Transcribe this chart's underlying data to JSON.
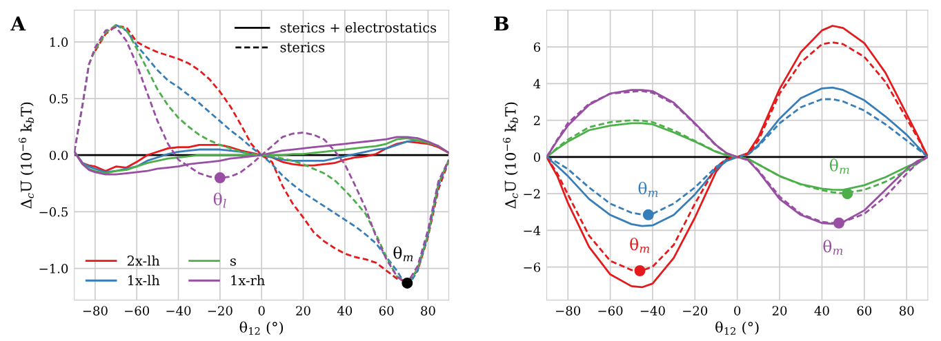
{
  "chart_data": [
    {
      "type": "line",
      "title": "A",
      "xlabel": "θ$_{12}$ (°)",
      "ylabel": "Δ$_{c}$U̅ (10$^{−6}$ k$_{b}$T)",
      "x": [
        -90,
        -86,
        -83,
        -80,
        -75,
        -70,
        -65,
        -60,
        -55,
        -50,
        -45,
        -40,
        -35,
        -30,
        -25,
        -20,
        -15,
        -10,
        -5,
        0,
        5,
        10,
        15,
        20,
        25,
        30,
        35,
        40,
        45,
        50,
        55,
        60,
        65,
        70,
        75,
        80,
        85,
        90
      ],
      "xlim": [
        -90,
        90
      ],
      "xticks": [
        {
          "value": -80,
          "label": "−80"
        },
        {
          "value": -60,
          "label": "−60"
        },
        {
          "value": -40,
          "label": "−40"
        },
        {
          "value": -20,
          "label": "−20"
        },
        0,
        20,
        40,
        60,
        80
      ],
      "ylim": [
        -1.28,
        1.28
      ],
      "yticks": [
        {
          "value": -1.0,
          "label": "−1.0"
        },
        {
          "value": -0.5,
          "label": "−0.5"
        },
        {
          "value": 0.0,
          "label": "0.0"
        },
        0.5,
        {
          "value": 1.0,
          "label": "1.0"
        }
      ],
      "grid": true,
      "legend": "bottom left",
      "ref_lines": [
        {
          "axis": "y",
          "value": 0,
          "color": "#000000"
        }
      ],
      "series": [
        {
          "name": "2x-lh",
          "color": "#e41a1c",
          "line_style": "solid",
          "values": [
            0.03,
            -0.07,
            -0.09,
            -0.1,
            -0.14,
            -0.1,
            -0.11,
            -0.06,
            0,
            0.03,
            0.06,
            0.07,
            0.07,
            0.09,
            0.09,
            0.09,
            0.07,
            0.04,
            0.02,
            0,
            -0.02,
            -0.06,
            -0.08,
            -0.09,
            -0.09,
            -0.08,
            -0.07,
            -0.04,
            -0.02,
            -0.01,
            0.01,
            0.06,
            0.1,
            0.12,
            0.11,
            0.1,
            0.07,
            0.02
          ]
        },
        {
          "name": "1x-lh",
          "color": "#377eb8",
          "line_style": "solid",
          "values": [
            0.03,
            -0.07,
            -0.1,
            -0.12,
            -0.15,
            -0.14,
            -0.12,
            -0.1,
            -0.05,
            -0.02,
            0.01,
            0.03,
            0.04,
            0.05,
            0.05,
            0.05,
            0.04,
            0.03,
            0.01,
            0,
            -0.02,
            -0.04,
            -0.05,
            -0.05,
            -0.05,
            -0.05,
            -0.03,
            -0.01,
            0.01,
            0.03,
            0.05,
            0.06,
            0.09,
            0.12,
            0.13,
            0.11,
            null,
            null
          ]
        },
        {
          "name": "s",
          "color": "#4daf4a",
          "line_style": "solid",
          "values": [
            0.03,
            -0.08,
            -0.12,
            -0.14,
            -0.16,
            -0.14,
            -0.13,
            -0.1,
            -0.07,
            -0.05,
            -0.03,
            -0.02,
            -0.01,
            0,
            0,
            0,
            0,
            0,
            0,
            0,
            0,
            0,
            0.01,
            0.01,
            0.02,
            0.03,
            0.04,
            0.05,
            0.06,
            0.07,
            0.08,
            0.1,
            0.14,
            0.15,
            0.13,
            0.11,
            0.08,
            0.02
          ]
        },
        {
          "name": "1x-rh",
          "color": "#984ea3",
          "line_style": "solid",
          "values": [
            0.03,
            -0.08,
            -0.13,
            -0.15,
            -0.17,
            -0.17,
            -0.16,
            -0.15,
            -0.14,
            -0.12,
            -0.11,
            -0.1,
            -0.08,
            -0.07,
            -0.06,
            -0.05,
            -0.03,
            -0.02,
            -0.01,
            0,
            0.02,
            0.04,
            0.05,
            0.06,
            0.07,
            0.08,
            0.09,
            0.1,
            0.11,
            0.12,
            0.13,
            0.14,
            0.16,
            0.16,
            0.15,
            0.12,
            0.08,
            0.02
          ]
        },
        {
          "color": "#e41a1c",
          "line_style": "dashed",
          "values": [
            null,
            null,
            null,
            0.92,
            1.07,
            1.14,
            1.13,
            1.0,
            0.95,
            0.91,
            0.88,
            0.85,
            0.81,
            0.75,
            0.67,
            0.56,
            0.43,
            0.27,
            0.1,
            0,
            -0.06,
            -0.27,
            -0.43,
            -0.55,
            -0.68,
            -0.76,
            -0.82,
            -0.87,
            -0.9,
            -0.92,
            -0.95,
            -1.02,
            -1.09,
            -1.12,
            -1.02,
            -0.72,
            -0.3,
            -0.05
          ]
        },
        {
          "color": "#377eb8",
          "line_style": "dashed",
          "values": [
            null,
            null,
            null,
            null,
            null,
            1.15,
            1.1,
            0.97,
            0.86,
            0.75,
            0.66,
            0.6,
            0.53,
            0.46,
            0.38,
            0.3,
            0.22,
            0.15,
            0.07,
            0,
            -0.08,
            -0.18,
            -0.26,
            -0.33,
            -0.39,
            -0.45,
            -0.51,
            -0.57,
            -0.63,
            -0.7,
            -0.78,
            -0.9,
            -1.02,
            -1.17,
            -1.02,
            -0.7,
            -0.27,
            -0.04
          ]
        },
        {
          "color": "#4daf4a",
          "line_style": "dashed",
          "values": [
            0.03,
            0.45,
            0.8,
            0.93,
            1.08,
            1.15,
            1.11,
            0.94,
            0.76,
            0.58,
            0.44,
            0.33,
            0.25,
            0.18,
            0.13,
            0.09,
            0.06,
            0.03,
            0.01,
            0,
            -0.01,
            -0.03,
            -0.05,
            -0.08,
            -0.12,
            -0.16,
            -0.22,
            -0.31,
            -0.41,
            -0.52,
            -0.7,
            -0.9,
            -1.07,
            -1.15,
            -1.0,
            -0.7,
            -0.25,
            -0.04
          ]
        },
        {
          "color": "#984ea3",
          "line_style": "dashed",
          "values": [
            0.03,
            0.45,
            0.8,
            0.95,
            1.1,
            1.13,
            1.01,
            0.8,
            0.55,
            0.3,
            0.1,
            -0.04,
            -0.1,
            -0.16,
            -0.19,
            -0.2,
            -0.19,
            -0.15,
            -0.08,
            0,
            0.08,
            0.16,
            0.19,
            0.2,
            0.18,
            0.14,
            0.04,
            -0.08,
            -0.27,
            -0.47,
            -0.72,
            -0.92,
            -1.07,
            -1.13,
            -0.98,
            -0.66,
            -0.23,
            -0.04
          ]
        },
        {
          "type": "scatter",
          "marker": "circle",
          "color": "#000000",
          "x": [
            70
          ],
          "values": [
            -1.13
          ]
        },
        {
          "type": "scatter",
          "marker": "circle",
          "color": "#984ea3",
          "x": [
            -20
          ],
          "values": [
            -0.2
          ]
        }
      ],
      "annotations": [
        "sterics + electrostatics",
        "sterics",
        {
          "text": "θ$_{m}$",
          "x": 70,
          "y": -1.13
        },
        {
          "text": "θ$_{l}$",
          "x": -20,
          "y": -0.2
        }
      ]
    },
    {
      "type": "line",
      "title": "B",
      "xlabel": "θ$_{12}$ (°)",
      "ylabel": "Δ$_{c}$U̅ (10$^{−6}$ k$_{b}$T)",
      "x": [
        -90,
        -85,
        -80,
        -70,
        -60,
        -50,
        -45,
        -40,
        -30,
        -20,
        -10,
        -5,
        0,
        5,
        10,
        20,
        30,
        40,
        45,
        50,
        60,
        70,
        80,
        85,
        90
      ],
      "xlim": [
        -90,
        90
      ],
      "xticks": [
        {
          "value": -80,
          "label": "−80"
        },
        {
          "value": -60,
          "label": "−60"
        },
        {
          "value": -40,
          "label": "−40"
        },
        {
          "value": -20,
          "label": "−20"
        },
        0,
        20,
        40,
        60,
        80
      ],
      "ylim": [
        -7.8,
        8.0
      ],
      "yticks": [
        {
          "value": -6,
          "label": "−6"
        },
        {
          "value": -4,
          "label": "−4"
        },
        {
          "value": -2,
          "label": "−2"
        },
        0,
        2,
        4,
        6
      ],
      "grid": true,
      "ref_lines": [
        {
          "axis": "y",
          "value": 0,
          "color": "#000000"
        }
      ],
      "series": [
        {
          "color": "#e41a1c",
          "line_style": "solid",
          "values": [
            0,
            -1.04,
            -2.5,
            -4.9,
            -6.4,
            -7.04,
            -7.1,
            -6.9,
            -5.5,
            -3.3,
            -0.8,
            -0.1,
            0,
            0.21,
            1.09,
            3.71,
            5.71,
            6.9,
            7.15,
            7.03,
            6.21,
            4.59,
            2.34,
            1.21,
            0
          ]
        },
        {
          "color": "#377eb8",
          "line_style": "solid",
          "values": [
            0,
            -0.5,
            -1.04,
            -2.29,
            -3.16,
            -3.66,
            -3.76,
            -3.73,
            -3.16,
            -2.04,
            -0.66,
            -0.22,
            0,
            0.15,
            0.65,
            2.09,
            3.21,
            3.74,
            3.78,
            3.65,
            3.09,
            2.21,
            1.21,
            0.59,
            0
          ]
        },
        {
          "color": "#4daf4a",
          "line_style": "solid",
          "values": [
            0,
            0.45,
            0.84,
            1.46,
            1.71,
            1.84,
            1.84,
            1.78,
            1.34,
            0.84,
            0.28,
            0.09,
            0,
            -0.1,
            -0.41,
            -1.04,
            -1.48,
            -1.73,
            -1.78,
            -1.79,
            -1.54,
            -1.1,
            -0.54,
            -0.29,
            0
          ]
        },
        {
          "color": "#984ea3",
          "line_style": "solid",
          "values": [
            0,
            0.9,
            1.71,
            2.84,
            3.46,
            3.65,
            3.65,
            3.59,
            2.96,
            1.84,
            0.65,
            0.21,
            0,
            -0.16,
            -0.79,
            -2.29,
            -3.16,
            -3.6,
            -3.64,
            -3.54,
            -2.91,
            -1.79,
            -0.66,
            -0.22,
            0
          ]
        },
        {
          "color": "#e41a1c",
          "line_style": "dashed",
          "values": [
            0,
            -0.9,
            -2.04,
            -4.29,
            -5.66,
            -6.16,
            -6.19,
            -5.98,
            -4.79,
            -2.54,
            -0.54,
            -0.1,
            0,
            0.15,
            0.9,
            3.46,
            5.15,
            6.15,
            6.25,
            6.15,
            5.46,
            4.09,
            2.09,
            1.09,
            0
          ]
        },
        {
          "color": "#377eb8",
          "line_style": "dashed",
          "values": [
            0,
            -0.3,
            -0.66,
            -1.66,
            -2.54,
            -3.04,
            -3.14,
            -3.1,
            -2.54,
            -1.66,
            -0.54,
            -0.16,
            0,
            0.12,
            0.59,
            1.84,
            2.71,
            3.15,
            3.15,
            3.03,
            2.53,
            1.78,
            0.9,
            0.46,
            0
          ]
        },
        {
          "color": "#4daf4a",
          "line_style": "dashed",
          "values": [
            0,
            0.5,
            0.95,
            1.62,
            1.9,
            2.0,
            1.98,
            1.9,
            1.45,
            0.88,
            0.3,
            0.1,
            0,
            -0.1,
            -0.41,
            -1.04,
            -1.5,
            -1.81,
            -1.92,
            -1.98,
            -1.79,
            -1.35,
            -0.73,
            -0.35,
            0
          ]
        },
        {
          "color": "#984ea3",
          "line_style": "dashed",
          "values": [
            0,
            0.95,
            1.85,
            2.9,
            3.45,
            3.55,
            3.6,
            3.5,
            2.9,
            1.8,
            0.62,
            0.2,
            0,
            -0.16,
            -0.73,
            -2.16,
            -3.1,
            -3.54,
            -3.6,
            -3.54,
            -3.1,
            -2.16,
            -0.91,
            -0.35,
            0
          ]
        },
        {
          "type": "scatter",
          "marker": "circle",
          "color": "#377eb8",
          "x": [
            -42
          ],
          "values": [
            -3.15
          ]
        },
        {
          "type": "scatter",
          "marker": "circle",
          "color": "#e41a1c",
          "x": [
            -46
          ],
          "values": [
            -6.2
          ]
        },
        {
          "type": "scatter",
          "marker": "circle",
          "color": "#4daf4a",
          "x": [
            52
          ],
          "values": [
            -2.0
          ]
        },
        {
          "type": "scatter",
          "marker": "circle",
          "color": "#984ea3",
          "x": [
            48
          ],
          "values": [
            -3.6
          ]
        }
      ],
      "annotations": [
        {
          "text": "θ$_{m}$",
          "x": -42,
          "y": -3.15
        },
        {
          "text": "θ$_{m}$",
          "x": -46,
          "y": -6.2
        },
        {
          "text": "θ$_{m}$",
          "x": 52,
          "y": -2.0
        },
        {
          "text": "θ$_{m}$",
          "x": 48,
          "y": -3.6
        }
      ]
    }
  ]
}
